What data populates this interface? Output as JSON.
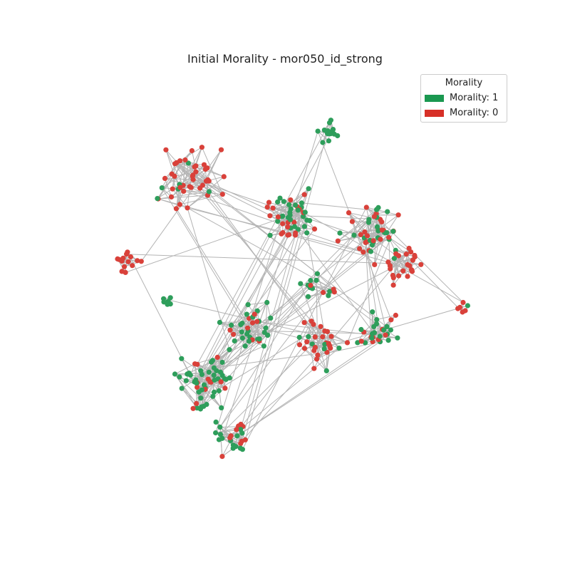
{
  "title": "Initial Morality - mor050_id_strong",
  "legend": {
    "title": "Morality",
    "items": [
      {
        "label": "Morality: 1",
        "value": 1,
        "color": "#1a9850"
      },
      {
        "label": "Morality: 0",
        "value": 0,
        "color": "#d73027"
      }
    ]
  },
  "style": {
    "edge_color": "#b4b4b4",
    "node_color_1": "#2e9e5b",
    "node_color_0": "#d9413a"
  },
  "chart_data": {
    "type": "network",
    "title": "Initial Morality - mor050_id_strong",
    "legend_title": "Morality",
    "categories": [
      "Morality: 1",
      "Morality: 0"
    ]
  }
}
